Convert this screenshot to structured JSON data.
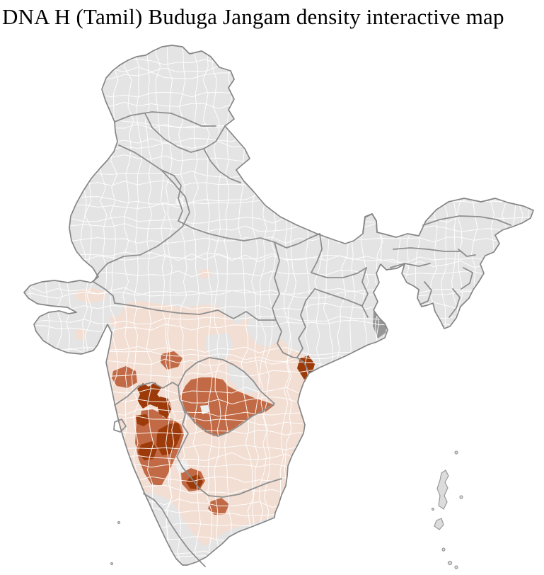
{
  "page": {
    "title": "DNA H (Tamil) Buduga Jangam density interactive map",
    "background_color": "#ffffff"
  },
  "map": {
    "description": "India district-level choropleth, no text labels on map",
    "interactive": true,
    "colors": {
      "sea": "#ffffff",
      "no_data_district": "#e4e4e4",
      "district_border": "#ffffff",
      "state_border": "#8f8f8f",
      "country_outline": "#858585",
      "delta_marsh": "#8d8d8d",
      "city_pocket": "#ededed",
      "island_fill": "#dcdcdc",
      "island_stroke": "#9a9a9a"
    },
    "density_scale": [
      {
        "level": 0,
        "name": "none",
        "color": "#e4e4e4"
      },
      {
        "level": 1,
        "name": "low",
        "color": "#f2ded3"
      },
      {
        "level": 2,
        "name": "medium",
        "color": "#c16a45"
      },
      {
        "level": 3,
        "name": "high",
        "color": "#9d3a09"
      }
    ]
  }
}
